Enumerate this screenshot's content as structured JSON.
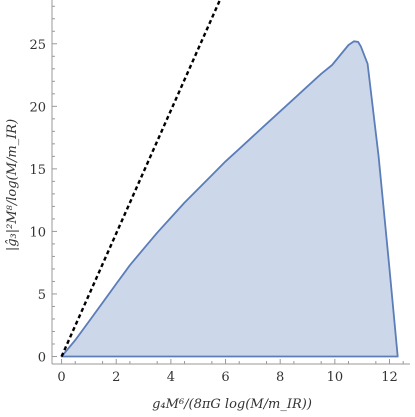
{
  "chart_data": {
    "type": "area",
    "xlabel": "g₄M⁶/(8πG log(M/m_IR))",
    "ylabel": "|ĝ₃|²M⁸/log(M/m_IR)",
    "xlim": [
      -0.35,
      12.75
    ],
    "ylim": [
      -0.6,
      28.5
    ],
    "x_ticks": [
      0,
      2,
      4,
      6,
      8,
      10,
      12
    ],
    "y_ticks": [
      0,
      5,
      10,
      15,
      20,
      25
    ],
    "grid": false,
    "colors": {
      "region_fill": "#ccd7ea",
      "region_edge": "#5b7db8",
      "bound_line": "#000000",
      "axis": "#999999"
    },
    "series": [
      {
        "style": "filled-region",
        "x": [
          0,
          0.5,
          1.0,
          1.5,
          2.0,
          2.5,
          3.0,
          3.5,
          4.0,
          4.5,
          5.0,
          5.5,
          6.0,
          6.5,
          7.0,
          7.5,
          8.0,
          8.5,
          9.0,
          9.5,
          9.9,
          10.2,
          10.5,
          10.7,
          10.85,
          10.95,
          11.2,
          11.6,
          12.0,
          12.3,
          12.3,
          0
        ],
        "y": [
          0,
          1.3,
          2.8,
          4.3,
          5.8,
          7.3,
          8.6,
          9.9,
          11.1,
          12.3,
          13.4,
          14.5,
          15.6,
          16.6,
          17.6,
          18.6,
          19.6,
          20.6,
          21.6,
          22.6,
          23.3,
          24.1,
          24.9,
          25.2,
          25.15,
          24.8,
          23.4,
          16.0,
          7.0,
          0,
          0,
          0
        ]
      },
      {
        "style": "dashed-line",
        "x": [
          0,
          6.1
        ],
        "y": [
          0,
          30
        ]
      }
    ]
  }
}
